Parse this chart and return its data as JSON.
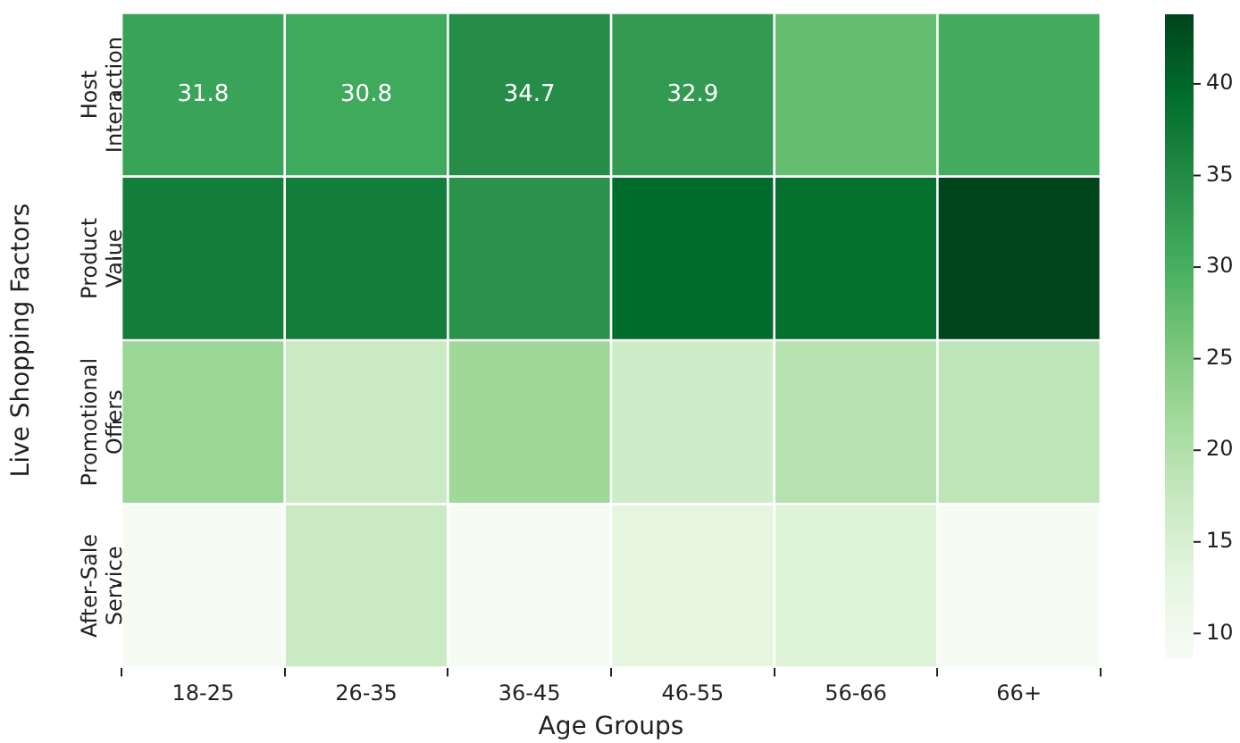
{
  "chart_data": {
    "type": "heatmap",
    "xlabel": "Age Groups",
    "ylabel": "Live Shopping Factors",
    "categories": [
      "18-25",
      "26-35",
      "36-45",
      "46-55",
      "56-66",
      "66+"
    ],
    "y_categories": [
      "Host Interaction",
      "Product Value",
      "Promotional Offers",
      "After-Sale Service"
    ],
    "cells": [
      [
        31.8,
        30.8,
        34.7,
        32.9,
        27.5,
        30.5
      ],
      [
        37,
        37,
        34,
        39.5,
        39,
        43.8
      ],
      [
        22.5,
        17,
        22,
        16.5,
        19.5,
        18.5
      ],
      [
        9,
        17,
        9,
        13,
        14,
        9
      ]
    ],
    "cell_labels": [
      [
        "31.8",
        "30.8",
        "34.7",
        "32.9",
        null,
        null
      ],
      [
        null,
        null,
        null,
        null,
        null,
        null
      ],
      [
        null,
        null,
        null,
        null,
        null,
        null
      ],
      [
        null,
        null,
        null,
        null,
        null,
        null
      ]
    ],
    "clim": [
      8.7,
      43.8
    ],
    "cticks": [
      10,
      15,
      20,
      25,
      30,
      35,
      40
    ]
  }
}
